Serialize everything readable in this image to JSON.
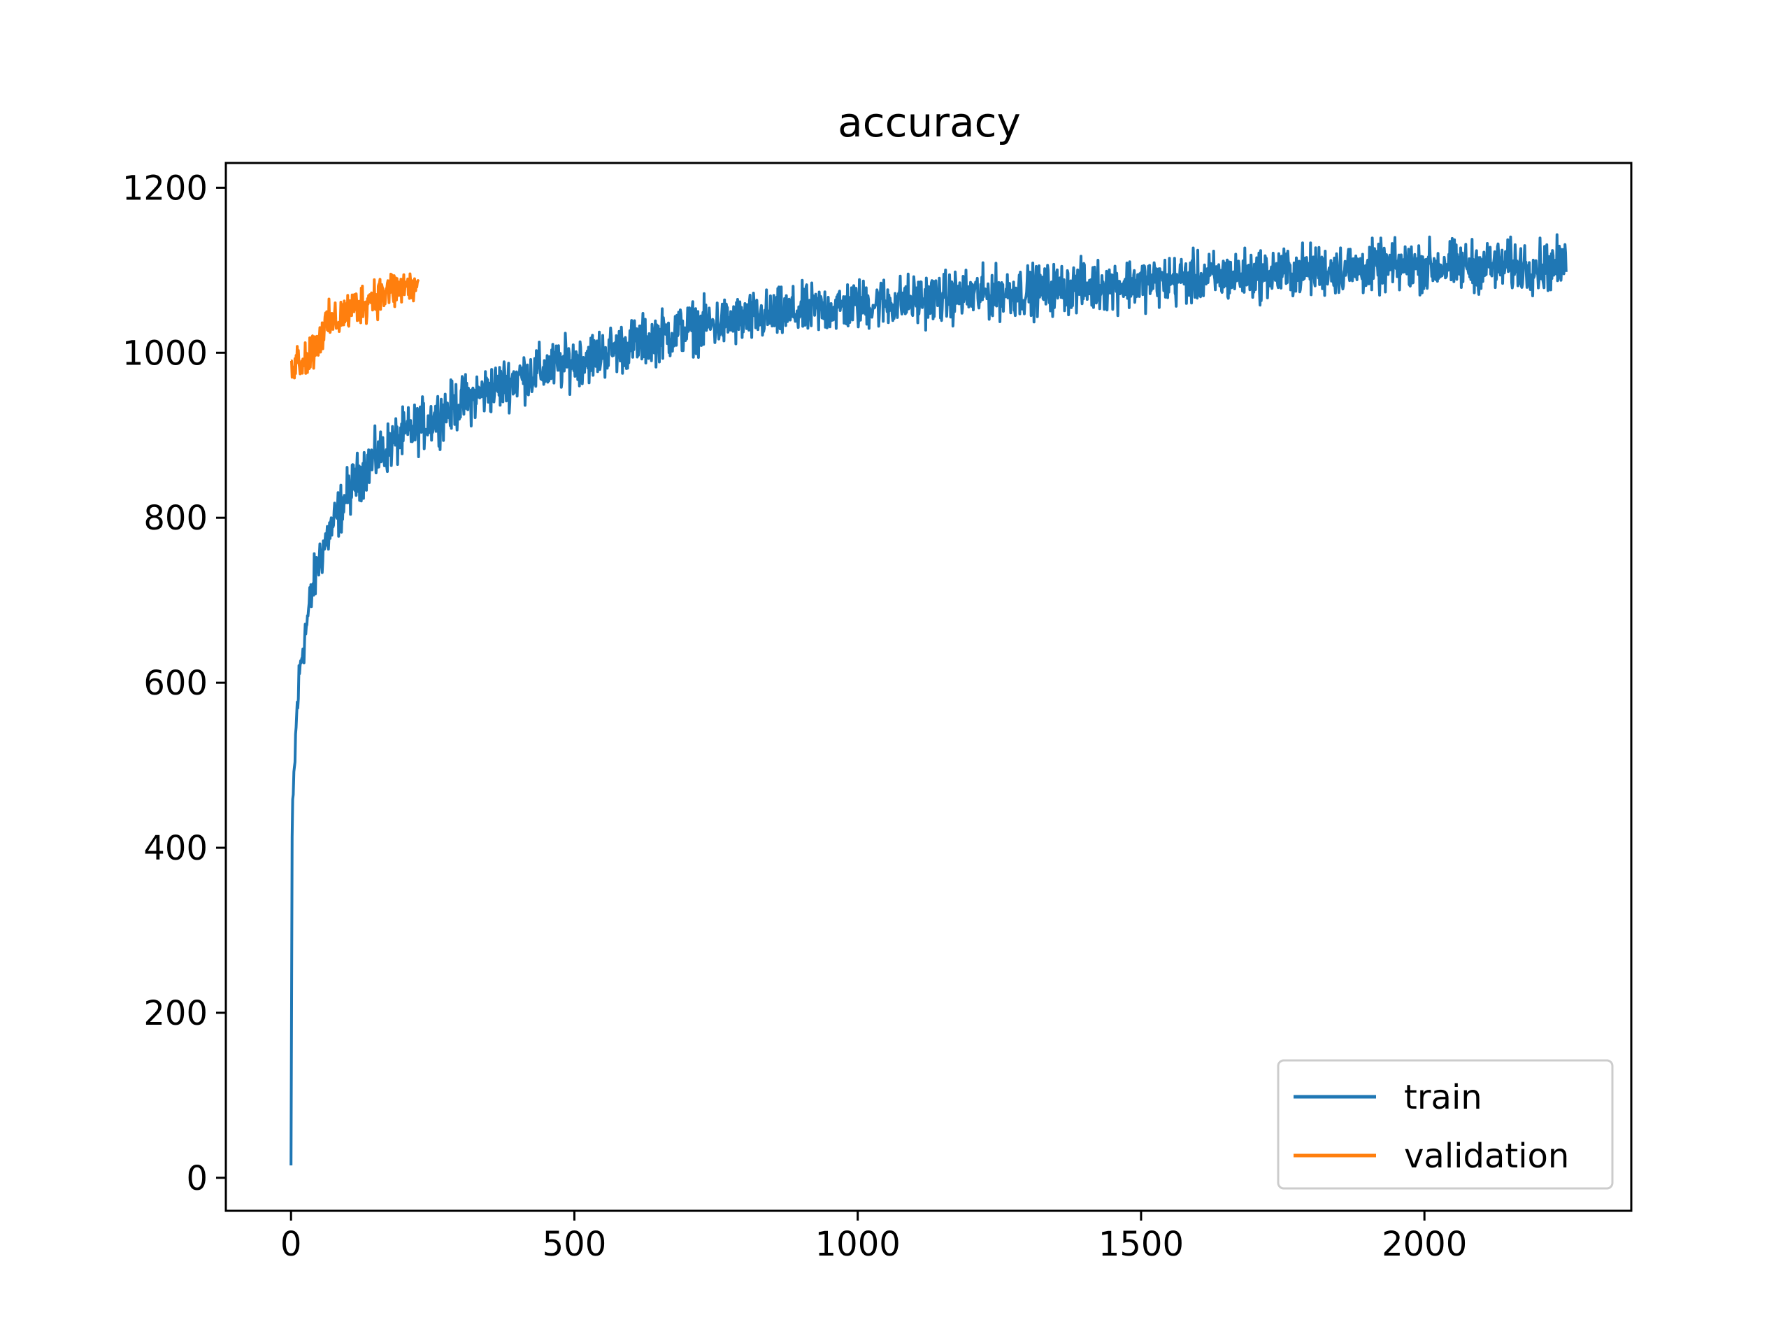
{
  "chart_data": {
    "type": "line",
    "title": "accuracy",
    "xlabel": "",
    "ylabel": "",
    "xlim": [
      -115,
      2365
    ],
    "ylim": [
      -40,
      1230
    ],
    "xticks": [
      0,
      500,
      1000,
      1500,
      2000
    ],
    "yticks": [
      0,
      200,
      400,
      600,
      800,
      1000,
      1200
    ],
    "xtick_labels": [
      "0",
      "500",
      "1000",
      "1500",
      "2000"
    ],
    "ytick_labels": [
      "0",
      "200",
      "400",
      "600",
      "800",
      "1000",
      "1200"
    ],
    "grid": false,
    "legend_position": "lower right",
    "series": [
      {
        "name": "train",
        "color": "#1f77b4",
        "trend": [
          [
            0,
            15
          ],
          [
            2,
            410
          ],
          [
            5,
            480
          ],
          [
            10,
            560
          ],
          [
            15,
            610
          ],
          [
            20,
            640
          ],
          [
            30,
            680
          ],
          [
            40,
            720
          ],
          [
            50,
            750
          ],
          [
            60,
            770
          ],
          [
            80,
            800
          ],
          [
            100,
            830
          ],
          [
            130,
            860
          ],
          [
            170,
            885
          ],
          [
            200,
            900
          ],
          [
            250,
            920
          ],
          [
            300,
            940
          ],
          [
            350,
            955
          ],
          [
            400,
            970
          ],
          [
            500,
            990
          ],
          [
            600,
            1010
          ],
          [
            700,
            1030
          ],
          [
            800,
            1040
          ],
          [
            900,
            1050
          ],
          [
            1000,
            1058
          ],
          [
            1200,
            1070
          ],
          [
            1400,
            1080
          ],
          [
            1600,
            1090
          ],
          [
            1800,
            1100
          ],
          [
            2000,
            1105
          ],
          [
            2250,
            1105
          ]
        ],
        "noise": 30
      },
      {
        "name": "validation",
        "color": "#ff7f0e",
        "trend": [
          [
            0,
            990
          ],
          [
            30,
            995
          ],
          [
            60,
            1030
          ],
          [
            100,
            1050
          ],
          [
            150,
            1070
          ],
          [
            200,
            1080
          ],
          [
            225,
            1080
          ]
        ],
        "noise": 25
      }
    ]
  }
}
